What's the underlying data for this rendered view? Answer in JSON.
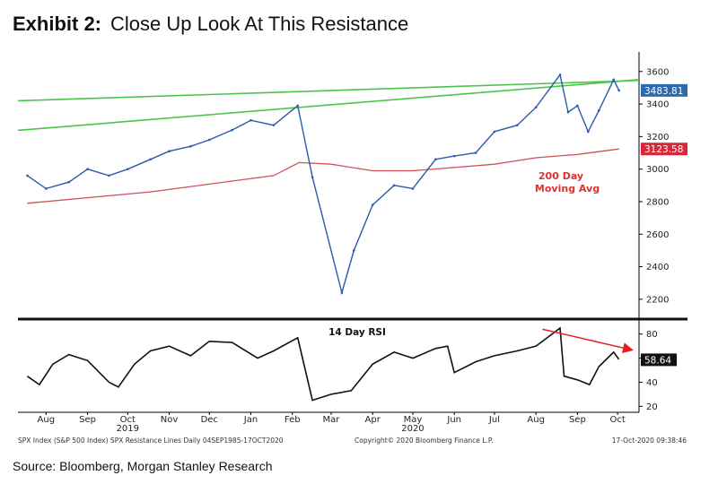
{
  "exhibit": {
    "label": "Exhibit 2:",
    "title": "Close Up Look At This Resistance"
  },
  "source": "Source: Bloomberg, Morgan Stanley Research",
  "footer": {
    "left": "SPX Index (S&P 500 Index) SPX Resistance Lines  Daily 04SEP1985-17OCT2020",
    "center": "Copyright© 2020 Bloomberg Finance L.P.",
    "right": "17-Oct-2020 09:38:46"
  },
  "chart_data": [
    {
      "type": "line",
      "panel": "price",
      "ylim": [
        2100,
        3720
      ],
      "yticks": [
        "3600",
        "3400",
        "3200",
        "3000",
        "2800",
        "2600",
        "2400",
        "2200"
      ],
      "labels": {
        "last_price": "3483.81",
        "ma_value": "3123.58",
        "ma_label_line1": "200 Day",
        "ma_label_line2": "Moving Avg"
      },
      "colors": {
        "price": "#2a5ca8",
        "ma": "#d0505a",
        "resistance": "#4cc44c",
        "last_price_bg": "#2c6ab0",
        "ma_bg": "#d6283a",
        "ma_text": "#e03030"
      },
      "x_dates": [
        "2019-08-01",
        "2019-08-15",
        "2019-09-01",
        "2019-09-15",
        "2019-10-01",
        "2019-10-15",
        "2019-11-01",
        "2019-11-15",
        "2019-12-01",
        "2019-12-15",
        "2020-01-01",
        "2020-01-15",
        "2020-02-01",
        "2020-02-19",
        "2020-03-01",
        "2020-03-23",
        "2020-04-01",
        "2020-04-15",
        "2020-05-01",
        "2020-05-15",
        "2020-06-01",
        "2020-06-15",
        "2020-07-01",
        "2020-07-15",
        "2020-08-01",
        "2020-08-15",
        "2020-09-02",
        "2020-09-08",
        "2020-09-15",
        "2020-09-23",
        "2020-10-01",
        "2020-10-12",
        "2020-10-16"
      ],
      "price": [
        2960,
        2880,
        2920,
        3000,
        2960,
        3000,
        3060,
        3110,
        3140,
        3180,
        3240,
        3300,
        3270,
        3390,
        2950,
        2240,
        2500,
        2780,
        2900,
        2880,
        3060,
        3080,
        3100,
        3230,
        3270,
        3380,
        3580,
        3350,
        3390,
        3230,
        3360,
        3550,
        3484
      ],
      "ma_dates": [
        "2019-08-01",
        "2019-11-01",
        "2020-02-01",
        "2020-02-20",
        "2020-03-15",
        "2020-04-15",
        "2020-05-15",
        "2020-06-15",
        "2020-07-15",
        "2020-08-15",
        "2020-09-15",
        "2020-10-16"
      ],
      "ma_200d": [
        2790,
        2860,
        2960,
        3040,
        3030,
        2990,
        2990,
        3010,
        3030,
        3070,
        3090,
        3124
      ],
      "resistance_lines": [
        {
          "from_date": "2019-07-25",
          "from_value": 3238,
          "to_date": "2020-10-31",
          "to_value": 3550
        },
        {
          "from_date": "2019-07-25",
          "from_value": 3420,
          "to_date": "2020-10-31",
          "to_value": 3545
        }
      ]
    },
    {
      "type": "line",
      "panel": "rsi",
      "title": "14 Day RSI",
      "ylim": [
        15,
        88
      ],
      "yticks": [
        "80",
        "60",
        "40",
        "20"
      ],
      "labels": {
        "last_value": "58.64"
      },
      "x_dates": [
        "2019-08-01",
        "2019-08-10",
        "2019-08-20",
        "2019-09-01",
        "2019-09-15",
        "2019-10-01",
        "2019-10-08",
        "2019-10-20",
        "2019-11-01",
        "2019-11-15",
        "2019-12-01",
        "2019-12-15",
        "2020-01-01",
        "2020-01-20",
        "2020-02-01",
        "2020-02-19",
        "2020-03-01",
        "2020-03-15",
        "2020-03-30",
        "2020-04-15",
        "2020-05-01",
        "2020-05-15",
        "2020-06-01",
        "2020-06-10",
        "2020-06-15",
        "2020-07-01",
        "2020-07-15",
        "2020-08-01",
        "2020-08-15",
        "2020-09-02",
        "2020-09-05",
        "2020-09-15",
        "2020-09-24",
        "2020-10-01",
        "2020-10-12",
        "2020-10-16"
      ],
      "rsi": [
        45,
        38,
        55,
        63,
        58,
        40,
        36,
        55,
        66,
        70,
        62,
        74,
        73,
        60,
        66,
        77,
        25,
        30,
        33,
        55,
        65,
        60,
        68,
        70,
        48,
        57,
        62,
        66,
        70,
        85,
        45,
        42,
        38,
        53,
        65,
        59
      ],
      "arrow": {
        "from_date": "2020-08-20",
        "from_value": 84,
        "to_date": "2020-10-25",
        "to_value": 67,
        "color": "#e02020"
      }
    }
  ],
  "x_axis": {
    "months": [
      {
        "label": "Aug",
        "date": "2019-08-15"
      },
      {
        "label": "Sep",
        "date": "2019-09-15"
      },
      {
        "label": "Oct",
        "date": "2019-10-15"
      },
      {
        "label": "Nov",
        "date": "2019-11-15"
      },
      {
        "label": "Dec",
        "date": "2019-12-15"
      },
      {
        "label": "Jan",
        "date": "2020-01-15"
      },
      {
        "label": "Feb",
        "date": "2020-02-15"
      },
      {
        "label": "Mar",
        "date": "2020-03-15"
      },
      {
        "label": "Apr",
        "date": "2020-04-15"
      },
      {
        "label": "May",
        "date": "2020-05-15"
      },
      {
        "label": "Jun",
        "date": "2020-06-15"
      },
      {
        "label": "Jul",
        "date": "2020-07-15"
      },
      {
        "label": "Aug",
        "date": "2020-08-15"
      },
      {
        "label": "Sep",
        "date": "2020-09-15"
      },
      {
        "label": "Oct",
        "date": "2020-10-15"
      }
    ],
    "years": [
      {
        "label": "2019",
        "date": "2019-10-15"
      },
      {
        "label": "2020",
        "date": "2020-05-15"
      }
    ]
  }
}
